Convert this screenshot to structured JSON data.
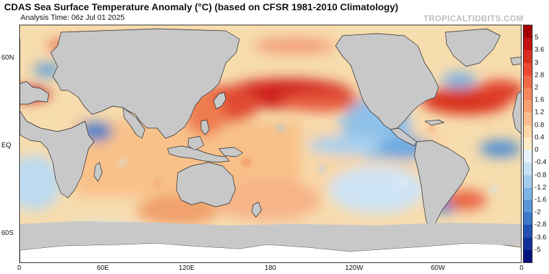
{
  "title": "CDAS Sea Surface Temperature Anomaly (°C) (based on CFSR 1981-2010 Climatology)",
  "subtitle": "Analysis Time: 06z Jul 01 2025",
  "credit": "TROPICALTIDBITS.COM",
  "map": {
    "lat_labels": [
      {
        "text": "60N",
        "lat": 60
      },
      {
        "text": "EQ",
        "lat": 0
      },
      {
        "text": "60S",
        "lat": -60
      }
    ],
    "lon_labels": [
      {
        "text": "0",
        "lon": 0
      },
      {
        "text": "60E",
        "lon": 60
      },
      {
        "text": "120E",
        "lon": 120
      },
      {
        "text": "180",
        "lon": 180
      },
      {
        "text": "120W",
        "lon": 240
      },
      {
        "text": "60W",
        "lon": 300
      },
      {
        "text": "0",
        "lon": 360
      }
    ],
    "land_color": "#c8c8c8",
    "ice_color": "#ffffff"
  },
  "colorbar": {
    "labels": [
      "5",
      "3.6",
      "3",
      "2.8",
      "2",
      "1.6",
      "1.2",
      "0.8",
      "0.4",
      "0",
      "-0.4",
      "-0.8",
      "-1.2",
      "-1.6",
      "-2",
      "-2.8",
      "-3.6",
      "-5"
    ],
    "colors": [
      "#a50000",
      "#c41010",
      "#d83020",
      "#e84a33",
      "#f06845",
      "#f5855a",
      "#f8a070",
      "#fbbd8c",
      "#fdd6a8",
      "#fdebc8",
      "#e6f2fa",
      "#c6e1f4",
      "#a3cdee",
      "#7db5e4",
      "#5b97d8",
      "#3d77c9",
      "#2452b4",
      "#12309a",
      "#06127c"
    ]
  }
}
